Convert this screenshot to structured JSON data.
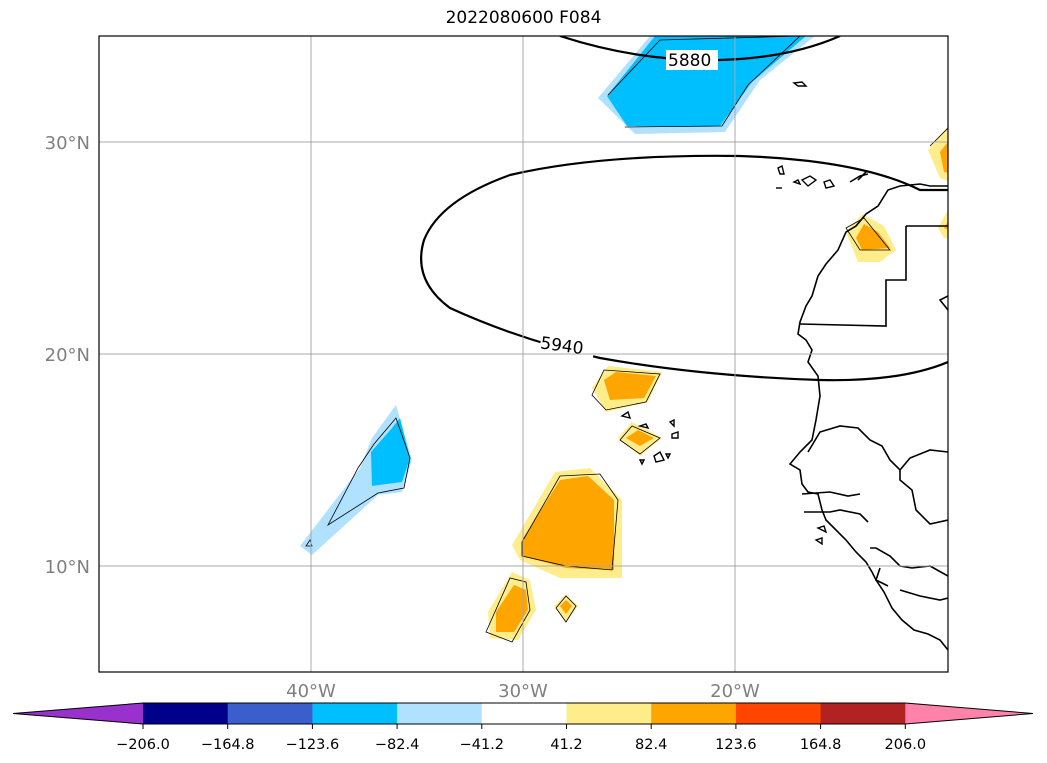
{
  "title": "2022080600 F084",
  "map": {
    "lon_range": [
      -50,
      -10
    ],
    "lat_range": [
      5,
      35
    ],
    "gridlines": true,
    "lat_labels": [
      {
        "lat": 30,
        "label": "30°N"
      },
      {
        "lat": 20,
        "label": "20°N"
      },
      {
        "lat": 10,
        "label": "10°N"
      }
    ],
    "lon_labels": [
      {
        "lon": -40,
        "label": "40°W"
      },
      {
        "lon": -30,
        "label": "30°W"
      },
      {
        "lon": -20,
        "label": "20°W"
      }
    ],
    "contours": [
      {
        "value": "5880",
        "label": "5880"
      },
      {
        "value": "5940",
        "label": "5940"
      }
    ]
  },
  "colorbar": {
    "colors": [
      "#9932CC",
      "#00008B",
      "#3A5FCD",
      "#00BFFF",
      "#B0E2FF",
      "#FFFFFF",
      "#FFEC8B",
      "#FFA500",
      "#FF4500",
      "#B22222",
      "#FF82AB"
    ],
    "ticks": [
      "−206.0",
      "−164.8",
      "−123.6",
      "−82.4",
      "−41.2",
      "41.2",
      "82.4",
      "123.6",
      "164.8",
      "206.0"
    ]
  }
}
